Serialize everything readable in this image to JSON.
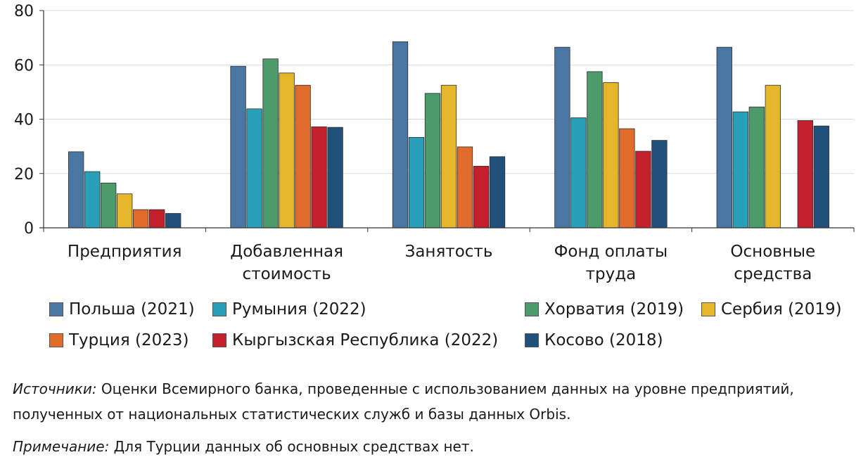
{
  "chart_data": {
    "type": "bar",
    "ylim": [
      0,
      80
    ],
    "yticks": [
      0,
      20,
      40,
      60,
      80
    ],
    "grid": true,
    "categories": [
      [
        "Предприятия"
      ],
      [
        "Добавленная",
        "стоимость"
      ],
      [
        "Занятость"
      ],
      [
        "Фонд оплаты",
        "труда"
      ],
      [
        "Основные",
        "средства"
      ]
    ],
    "series": [
      {
        "name": "Польша (2021)",
        "color": "#4a76a3",
        "values": [
          28,
          59.5,
          68.5,
          66.5,
          66.5
        ]
      },
      {
        "name": "Румыния (2022)",
        "color": "#2aa0b8",
        "values": [
          20.7,
          43.8,
          33.3,
          40.5,
          42.7
        ]
      },
      {
        "name": "Хорватия (2019)",
        "color": "#4d9a6a",
        "values": [
          16.5,
          62.2,
          49.5,
          57.5,
          44.5
        ]
      },
      {
        "name": "Сербия (2019)",
        "color": "#e5b62a",
        "values": [
          12.5,
          57,
          52.5,
          53.5,
          52.5
        ]
      },
      {
        "name": "Турция (2023)",
        "color": "#e06b2a",
        "values": [
          6.7,
          52.5,
          29.8,
          36.5,
          null
        ]
      },
      {
        "name": "Кыргызская Республика (2022)",
        "color": "#c4202e",
        "values": [
          6.7,
          37.2,
          22.7,
          28.2,
          39.5
        ]
      },
      {
        "name": "Косово (2018)",
        "color": "#21507a",
        "values": [
          5.3,
          37,
          26.2,
          32.2,
          37.5
        ]
      }
    ]
  },
  "notes": {
    "source_label": "Источники:",
    "source_text": " Оценки Всемирного банка, проведенные с использованием данных на уровне предприятий, полученных от национальных статистических служб и базы данных Orbis.",
    "note_label": "Примечание:",
    "note_text": " Для Турции данных об основных средствах нет."
  }
}
